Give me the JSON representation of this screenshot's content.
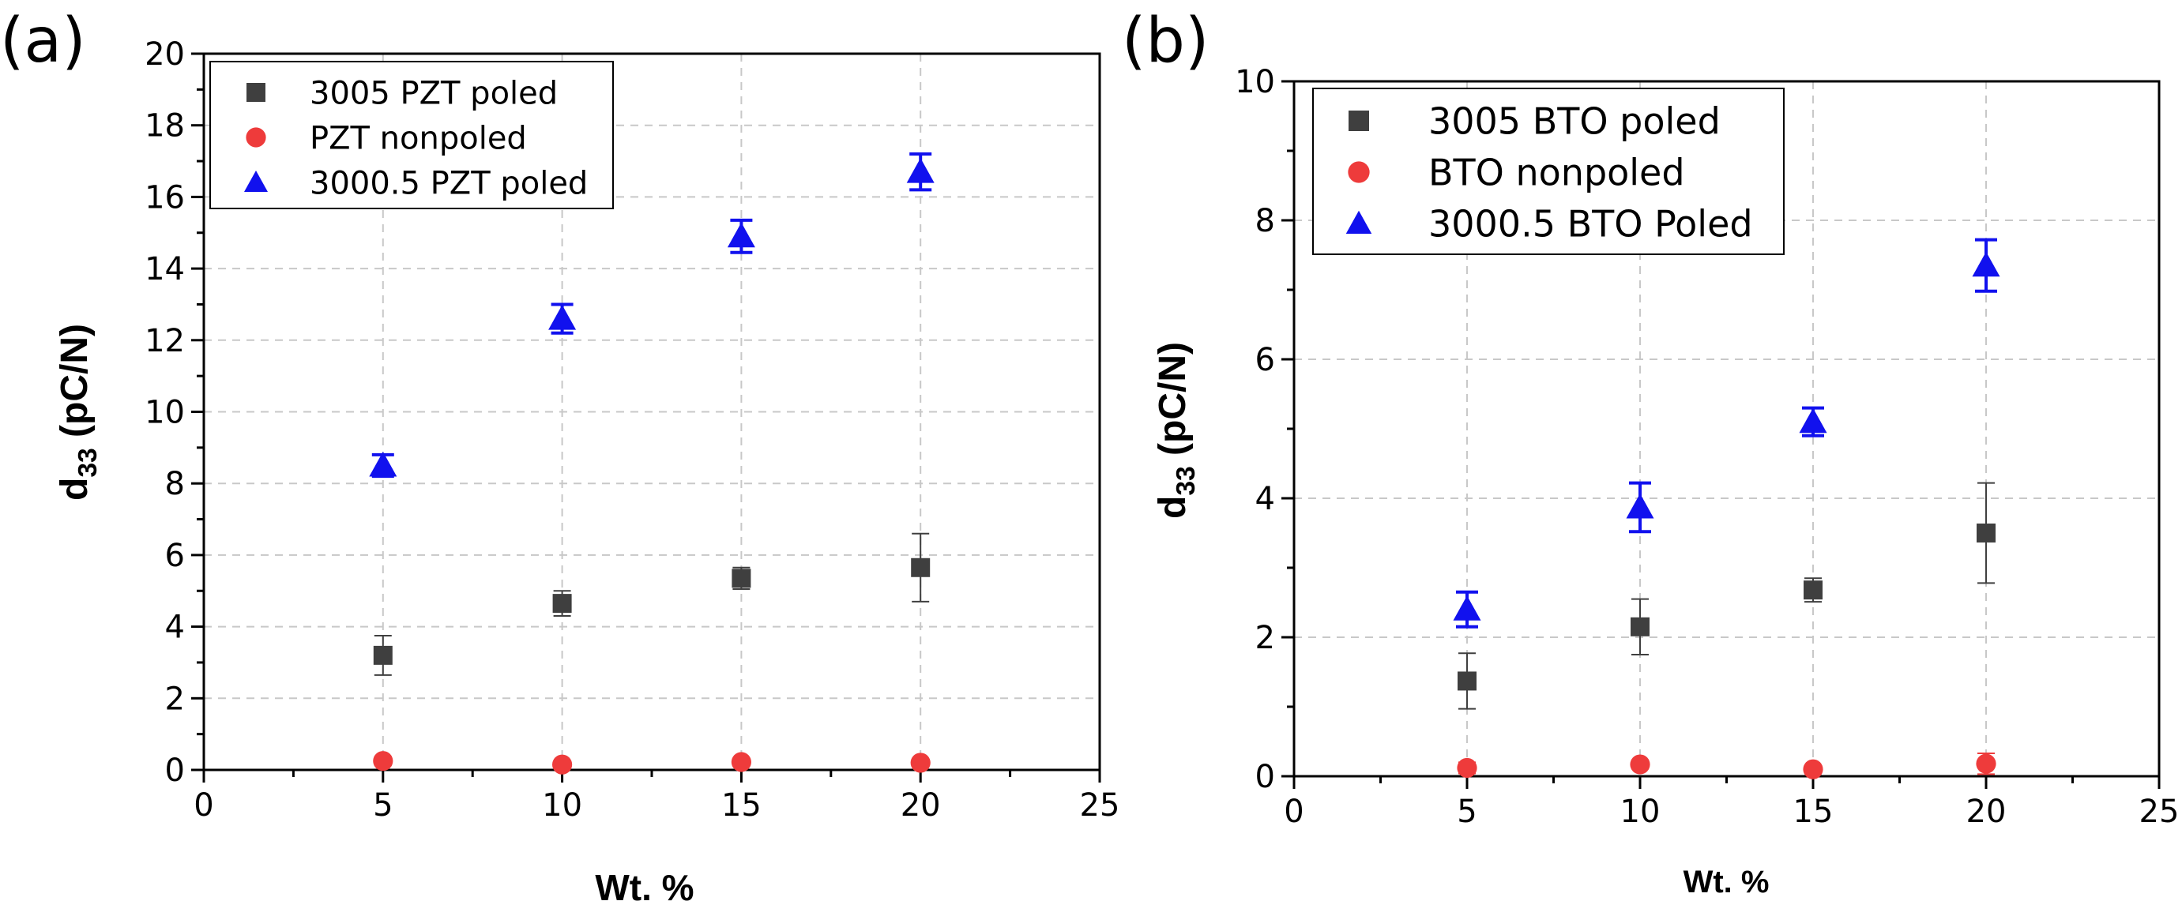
{
  "chart_data": [
    {
      "type": "scatter",
      "panel_label": "(a)",
      "xlabel": "Wt. %",
      "ylabel_main": "d",
      "ylabel_sub": "33",
      "ylabel_rest": " (pC/N)",
      "xlim": [
        0,
        25
      ],
      "ylim": [
        0,
        20
      ],
      "xticks": [
        0,
        5,
        10,
        15,
        20,
        25
      ],
      "yticks": [
        0,
        2,
        4,
        6,
        8,
        10,
        12,
        14,
        16,
        18,
        20
      ],
      "grid": true,
      "legend_position": "top-left",
      "series": [
        {
          "name": "3005 PZT poled",
          "marker": "square",
          "color": "#3f3f3f",
          "x": [
            5,
            10,
            15,
            20
          ],
          "y": [
            3.2,
            4.65,
            5.35,
            5.65
          ],
          "err": [
            0.55,
            0.35,
            0.3,
            0.95
          ]
        },
        {
          "name": "PZT nonpoled",
          "marker": "circle",
          "color": "#ee3b3b",
          "x": [
            5,
            10,
            15,
            20
          ],
          "y": [
            0.25,
            0.15,
            0.22,
            0.2
          ],
          "err": [
            0.12,
            0.05,
            0.06,
            0.05
          ]
        },
        {
          "name": "3000.5 PZT poled",
          "marker": "triangle",
          "color": "#1111ee",
          "x": [
            5,
            10,
            15,
            20
          ],
          "y": [
            8.5,
            12.6,
            14.9,
            16.7
          ],
          "err": [
            0.3,
            0.4,
            0.45,
            0.5
          ]
        }
      ]
    },
    {
      "type": "scatter",
      "panel_label": "(b)",
      "xlabel": "Wt. %",
      "ylabel_main": "d",
      "ylabel_sub": "33",
      "ylabel_rest": " (pC/N)",
      "xlim": [
        0,
        25
      ],
      "ylim": [
        0,
        10
      ],
      "xticks": [
        0,
        5,
        10,
        15,
        20,
        25
      ],
      "yticks": [
        0,
        2,
        4,
        6,
        8,
        10
      ],
      "grid": true,
      "legend_position": "top-left",
      "series": [
        {
          "name": "3005 BTO poled",
          "marker": "square",
          "color": "#3f3f3f",
          "x": [
            5,
            10,
            15,
            20
          ],
          "y": [
            1.37,
            2.15,
            2.68,
            3.5
          ],
          "err": [
            0.4,
            0.4,
            0.17,
            0.72
          ]
        },
        {
          "name": "BTO nonpoled",
          "marker": "circle",
          "color": "#ee3b3b",
          "x": [
            5,
            10,
            15,
            20
          ],
          "y": [
            0.12,
            0.17,
            0.1,
            0.18
          ],
          "err": [
            0.08,
            0.06,
            0.05,
            0.15
          ]
        },
        {
          "name": "3000.5 BTO Poled",
          "marker": "triangle",
          "color": "#1111ee",
          "x": [
            5,
            10,
            15,
            20
          ],
          "y": [
            2.4,
            3.87,
            5.1,
            7.35
          ],
          "err": [
            0.25,
            0.35,
            0.2,
            0.37
          ]
        }
      ]
    }
  ]
}
